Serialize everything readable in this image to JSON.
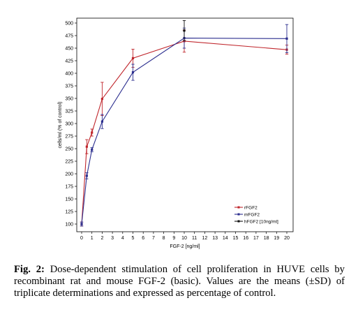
{
  "chart_data": {
    "type": "line",
    "title": "",
    "xlabel": "FGF-2 [ng/ml]",
    "ylabel": "cells/ml (% of control)",
    "xlim": [
      0,
      20
    ],
    "ylim": [
      100,
      500
    ],
    "xticks": [
      0,
      1,
      2,
      3,
      4,
      5,
      6,
      7,
      8,
      9,
      10,
      11,
      12,
      13,
      14,
      15,
      16,
      17,
      18,
      19,
      20
    ],
    "yticks": [
      100,
      125,
      150,
      175,
      200,
      225,
      250,
      275,
      300,
      325,
      350,
      375,
      400,
      425,
      450,
      475,
      500
    ],
    "grid": false,
    "legend_position": "bottom-right",
    "series": [
      {
        "name": "rFGF2",
        "color": "#c0262c",
        "x": [
          0,
          0.5,
          1,
          2,
          5,
          10,
          20
        ],
        "y": [
          100,
          254,
          282,
          349,
          430,
          464,
          447
        ],
        "err": [
          4,
          14,
          7,
          33,
          18,
          22,
          9
        ]
      },
      {
        "name": "mFGF2",
        "color": "#2c2f8f",
        "x": [
          0,
          0.5,
          1,
          2,
          5,
          10,
          20
        ],
        "y": [
          100,
          196,
          248,
          304,
          402,
          470,
          469
        ],
        "err": [
          4,
          6,
          4,
          14,
          16,
          20,
          28
        ]
      },
      {
        "name": "hFGF2 [10ng/ml]",
        "color": "#111111",
        "x": [
          10
        ],
        "y": [
          485
        ],
        "err": [
          20
        ]
      }
    ]
  },
  "caption": {
    "label": "Fig. 2:",
    "text": "Dose-dependent stimulation of cell proliferation in HUVE cells by recombinant rat and mouse FGF-2 (basic). Values are the means (±SD) of triplicate determinations and expressed as percentage of control."
  }
}
